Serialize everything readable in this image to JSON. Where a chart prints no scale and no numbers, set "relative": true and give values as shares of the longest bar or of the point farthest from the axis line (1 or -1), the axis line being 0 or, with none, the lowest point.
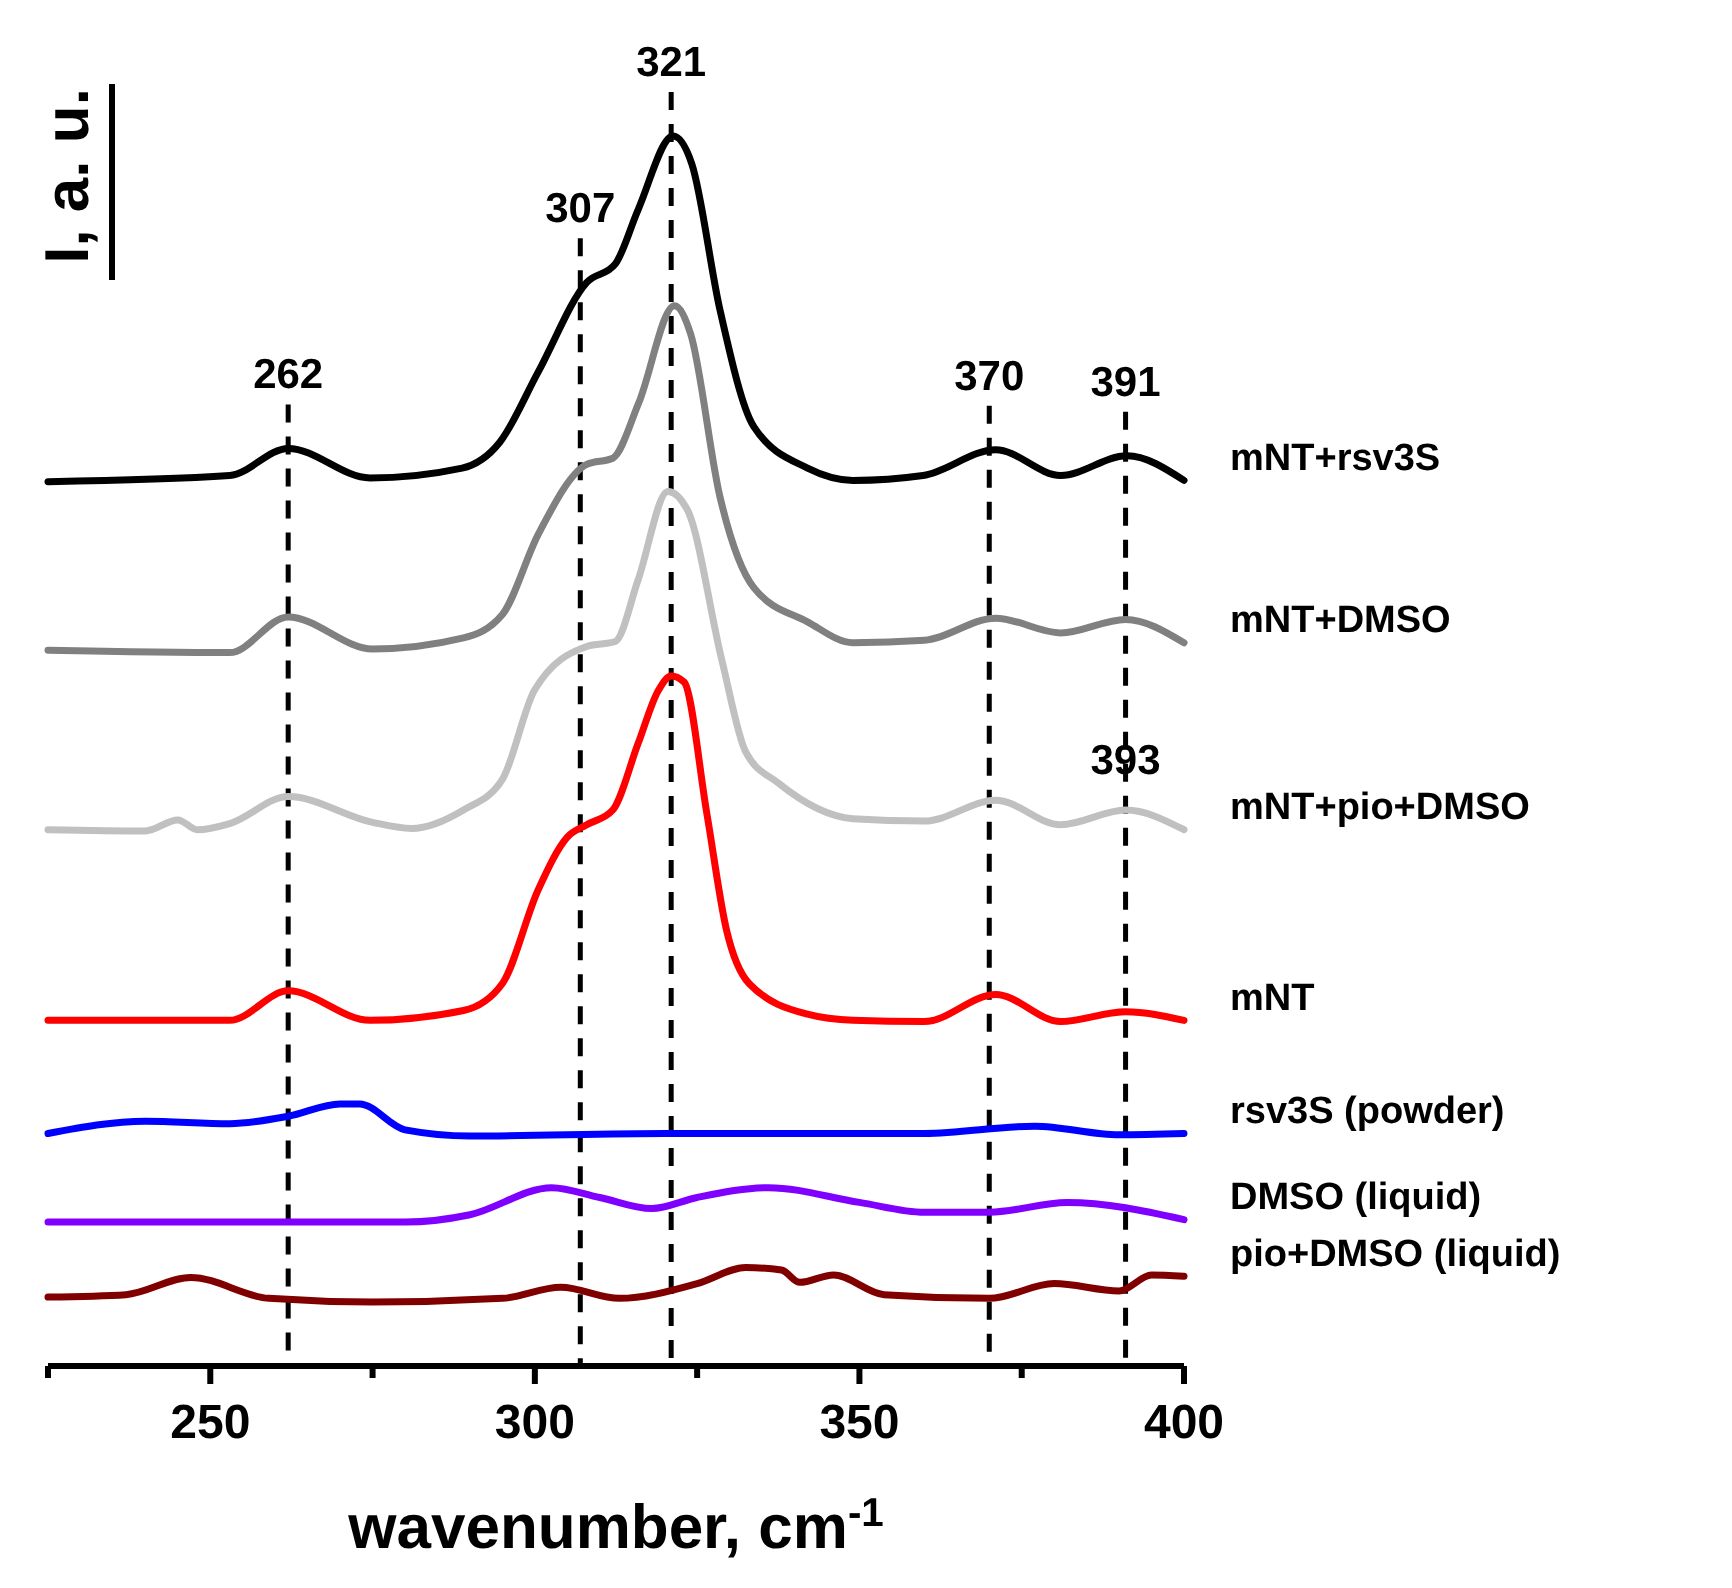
{
  "chart_data": {
    "type": "line",
    "relative": true,
    "xlabel": "wavenumber, cm$^{-1}$",
    "ylabel": "I, a. u.",
    "xlim": [
      225,
      400
    ],
    "xticks": [
      {
        "value": 225,
        "label": null
      },
      250,
      {
        "value": 275,
        "label": null
      },
      300,
      {
        "value": 325,
        "label": null
      },
      350,
      {
        "value": 375,
        "label": null
      },
      400
    ],
    "grid": false,
    "legend": false,
    "marker": "none",
    "line_style": "solid",
    "ref_lines": [
      {
        "axis": "x",
        "value": 262,
        "label": "262",
        "color": "#000000",
        "line_style": "dashed"
      },
      {
        "axis": "x",
        "value": 307,
        "label": "307",
        "color": "#000000",
        "line_style": "dashed"
      },
      {
        "axis": "x",
        "value": 321,
        "label": "321",
        "color": "#000000",
        "line_style": "dashed"
      },
      {
        "axis": "x",
        "value": 370,
        "label": "370",
        "color": "#000000",
        "line_style": "dashed"
      },
      {
        "axis": "x",
        "value": 391,
        "label": "391",
        "color": "#000000",
        "line_style": "dashed"
      }
    ],
    "annotations": [
      {
        "text": "393",
        "x": 391,
        "y": 0.452
      }
    ],
    "series": [
      {
        "name": "mNT+rsv3S",
        "color": "#000000",
        "x": [
          225,
          253,
          262,
          274.6,
          288.8,
          294.6,
          300.5,
          308,
          312.4,
          315.9,
          321.3,
          324.2,
          328.5,
          333.7,
          342,
          349,
          359.8,
          371,
          381,
          391.2,
          400
        ],
        "values": [
          0.719,
          0.724,
          0.746,
          0.722,
          0.73,
          0.751,
          0.808,
          0.881,
          0.896,
          0.94,
          1.0,
          0.977,
          0.859,
          0.764,
          0.73,
          0.72,
          0.724,
          0.745,
          0.724,
          0.74,
          0.72
        ]
      },
      {
        "name": "mNT+DMSO",
        "color": "#808080",
        "x": [
          225,
          253,
          262,
          275,
          289,
          295,
          300.5,
          308,
          312,
          316,
          321.5,
          324,
          328.5,
          333.7,
          342,
          349,
          360,
          371,
          381,
          391,
          400
        ],
        "values": [
          0.582,
          0.58,
          0.609,
          0.583,
          0.592,
          0.611,
          0.676,
          0.733,
          0.738,
          0.783,
          0.862,
          0.839,
          0.707,
          0.633,
          0.605,
          0.588,
          0.59,
          0.608,
          0.596,
          0.607,
          0.588
        ]
      },
      {
        "name": "mNT+pio+DMSO",
        "color": "#c0c0c0",
        "x": [
          225,
          240,
          245,
          248,
          253,
          262,
          275,
          281,
          289,
          295,
          300,
          308,
          312.4,
          315.9,
          320.5,
          323.5,
          328.8,
          332.5,
          337.5,
          349,
          360,
          371,
          381,
          391,
          400
        ],
        "values": [
          0.436,
          0.435,
          0.444,
          0.436,
          0.441,
          0.463,
          0.442,
          0.437,
          0.452,
          0.477,
          0.55,
          0.585,
          0.589,
          0.639,
          0.711,
          0.696,
          0.574,
          0.499,
          0.474,
          0.445,
          0.443,
          0.46,
          0.44,
          0.452,
          0.436
        ]
      },
      {
        "name": "mNT",
        "color": "#ff0000",
        "x": [
          225,
          253,
          262,
          274.6,
          289,
          295,
          300.5,
          305,
          308,
          312,
          315.9,
          319,
          321,
          323,
          326.5,
          329.5,
          333,
          342,
          349,
          360,
          371,
          381,
          391,
          400
        ],
        "values": [
          0.281,
          0.281,
          0.305,
          0.281,
          0.289,
          0.311,
          0.387,
          0.43,
          0.44,
          0.452,
          0.506,
          0.549,
          0.561,
          0.556,
          0.449,
          0.355,
          0.311,
          0.286,
          0.281,
          0.28,
          0.302,
          0.28,
          0.288,
          0.281
        ]
      },
      {
        "name": "rsv3S (powder)",
        "color": "#0000ff",
        "x": [
          225,
          240,
          253,
          262,
          270,
          273,
          280,
          290,
          320,
          360,
          377,
          390,
          400
        ],
        "values": [
          0.189,
          0.199,
          0.197,
          0.203,
          0.213,
          0.213,
          0.192,
          0.187,
          0.189,
          0.189,
          0.195,
          0.188,
          0.189
        ]
      },
      {
        "name": "DMSO (liquid)",
        "color": "#8000ff",
        "x": [
          225,
          280,
          290,
          302.6,
          310,
          318,
          325,
          336,
          350,
          360,
          370,
          382,
          400
        ],
        "values": [
          0.117,
          0.117,
          0.123,
          0.145,
          0.137,
          0.128,
          0.137,
          0.145,
          0.133,
          0.125,
          0.125,
          0.133,
          0.119
        ]
      },
      {
        "name": "pio+DMSO (liquid)",
        "color": "#800000",
        "x": [
          225,
          237,
          247,
          259,
          275,
          295,
          304,
          313,
          325,
          332.5,
          338,
          340.8,
          346,
          353.8,
          370,
          380,
          390,
          395,
          400
        ],
        "values": [
          0.056,
          0.058,
          0.072,
          0.055,
          0.052,
          0.055,
          0.064,
          0.055,
          0.067,
          0.08,
          0.078,
          0.068,
          0.074,
          0.058,
          0.055,
          0.067,
          0.061,
          0.074,
          0.073
        ]
      }
    ]
  }
}
